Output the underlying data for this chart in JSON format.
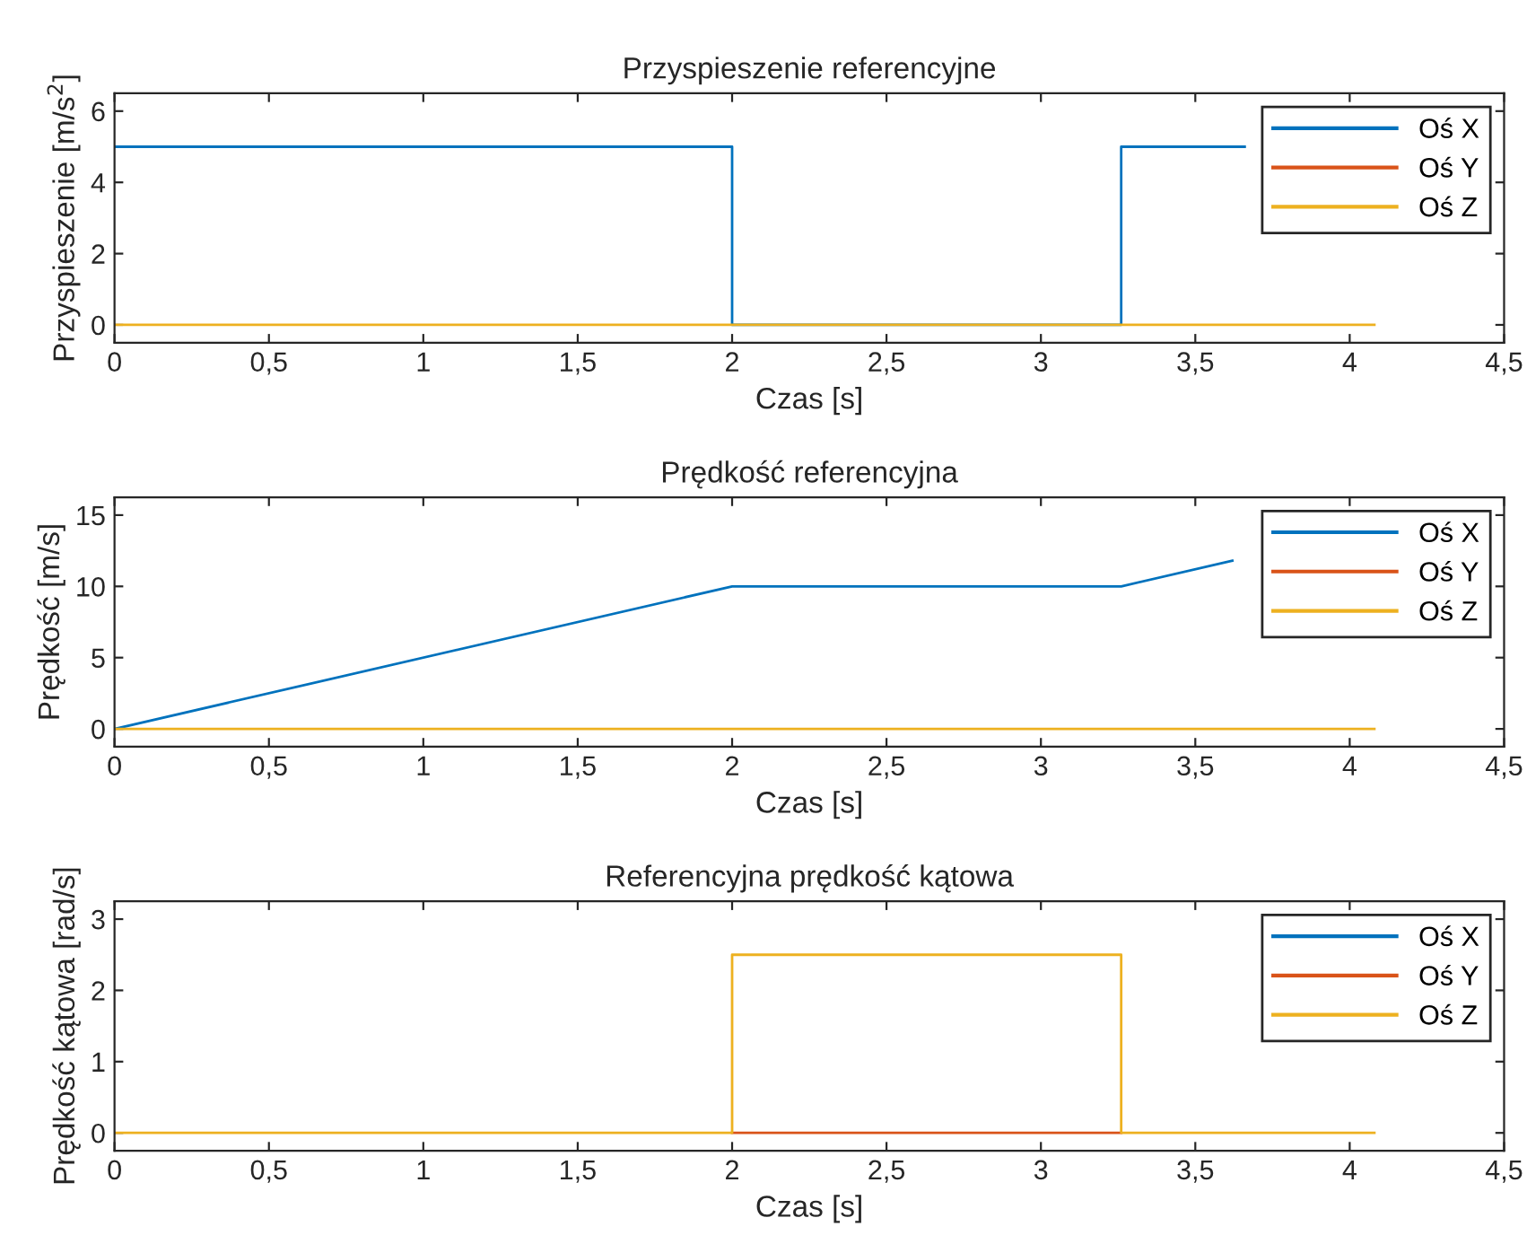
{
  "chart_data": [
    {
      "type": "line",
      "title": "Przyspieszenie referencyjne",
      "xlabel": "Czas [s]",
      "ylabel": "Przyspieszenie [m/s$^{2}$]",
      "xlim": [
        0,
        4.5
      ],
      "ylim": [
        -0.5,
        6.5
      ],
      "xticks": [
        0,
        {
          "value": 0.5,
          "label": "0,5"
        },
        1,
        {
          "value": 1.5,
          "label": "1,5"
        },
        2,
        {
          "value": 2.5,
          "label": "2,5"
        },
        3,
        {
          "value": 3.5,
          "label": "3,5"
        },
        4,
        {
          "value": 4.5,
          "label": "4,5"
        }
      ],
      "yticks": [
        0,
        2,
        4,
        6
      ],
      "legend": "top right",
      "grid": false,
      "series": [
        {
          "name": "Oś X",
          "color": "#0072bd",
          "x": [
            0,
            2,
            2,
            3.26,
            3.26,
            3.66
          ],
          "values": [
            5,
            5,
            0,
            0,
            5,
            5
          ]
        },
        {
          "name": "Oś Y",
          "color": "#d95319"
        },
        {
          "name": "Oś Z",
          "color": "#edb120",
          "x": [
            0,
            4.08
          ],
          "values": [
            0,
            0
          ]
        }
      ]
    },
    {
      "type": "line",
      "title": "Prędkość referencyjna",
      "xlabel": "Czas [s]",
      "ylabel": "Prędkość [m/s]",
      "xlim": [
        0,
        4.5
      ],
      "ylim": [
        -1.25,
        16.25
      ],
      "xticks": [
        0,
        {
          "value": 0.5,
          "label": "0,5"
        },
        1,
        {
          "value": 1.5,
          "label": "1,5"
        },
        2,
        {
          "value": 2.5,
          "label": "2,5"
        },
        3,
        {
          "value": 3.5,
          "label": "3,5"
        },
        4,
        {
          "value": 4.5,
          "label": "4,5"
        }
      ],
      "yticks": [
        0,
        5,
        10,
        15
      ],
      "legend": "top right",
      "grid": false,
      "series": [
        {
          "name": "Oś X",
          "color": "#0072bd",
          "x": [
            0,
            2,
            3.26,
            3.62
          ],
          "values": [
            0,
            10,
            10,
            11.8
          ]
        },
        {
          "name": "Oś Y",
          "color": "#d95319"
        },
        {
          "name": "Oś Z",
          "color": "#edb120",
          "x": [
            0,
            4.08
          ],
          "values": [
            0,
            0
          ]
        }
      ]
    },
    {
      "type": "line",
      "title": "Referencyjna prędkość kątowa",
      "xlabel": "Czas [s]",
      "ylabel": "Prędkość kątowa [rad/s]",
      "xlim": [
        0,
        4.5
      ],
      "ylim": [
        -0.25,
        3.25
      ],
      "xticks": [
        0,
        {
          "value": 0.5,
          "label": "0,5"
        },
        1,
        {
          "value": 1.5,
          "label": "1,5"
        },
        2,
        {
          "value": 2.5,
          "label": "2,5"
        },
        3,
        {
          "value": 3.5,
          "label": "3,5"
        },
        4,
        {
          "value": 4.5,
          "label": "4,5"
        }
      ],
      "yticks": [
        0,
        1,
        2,
        3
      ],
      "legend": "top right",
      "grid": false,
      "series": [
        {
          "name": "Oś X",
          "color": "#0072bd"
        },
        {
          "name": "Oś Y",
          "color": "#d95319",
          "x": [
            2,
            3.26
          ],
          "values": [
            0,
            0
          ]
        },
        {
          "name": "Oś Z",
          "color": "#edb120",
          "x": [
            0,
            2,
            2,
            3.26,
            3.26,
            4.08
          ],
          "values": [
            0,
            0,
            2.5,
            2.5,
            0,
            0
          ]
        }
      ]
    }
  ]
}
